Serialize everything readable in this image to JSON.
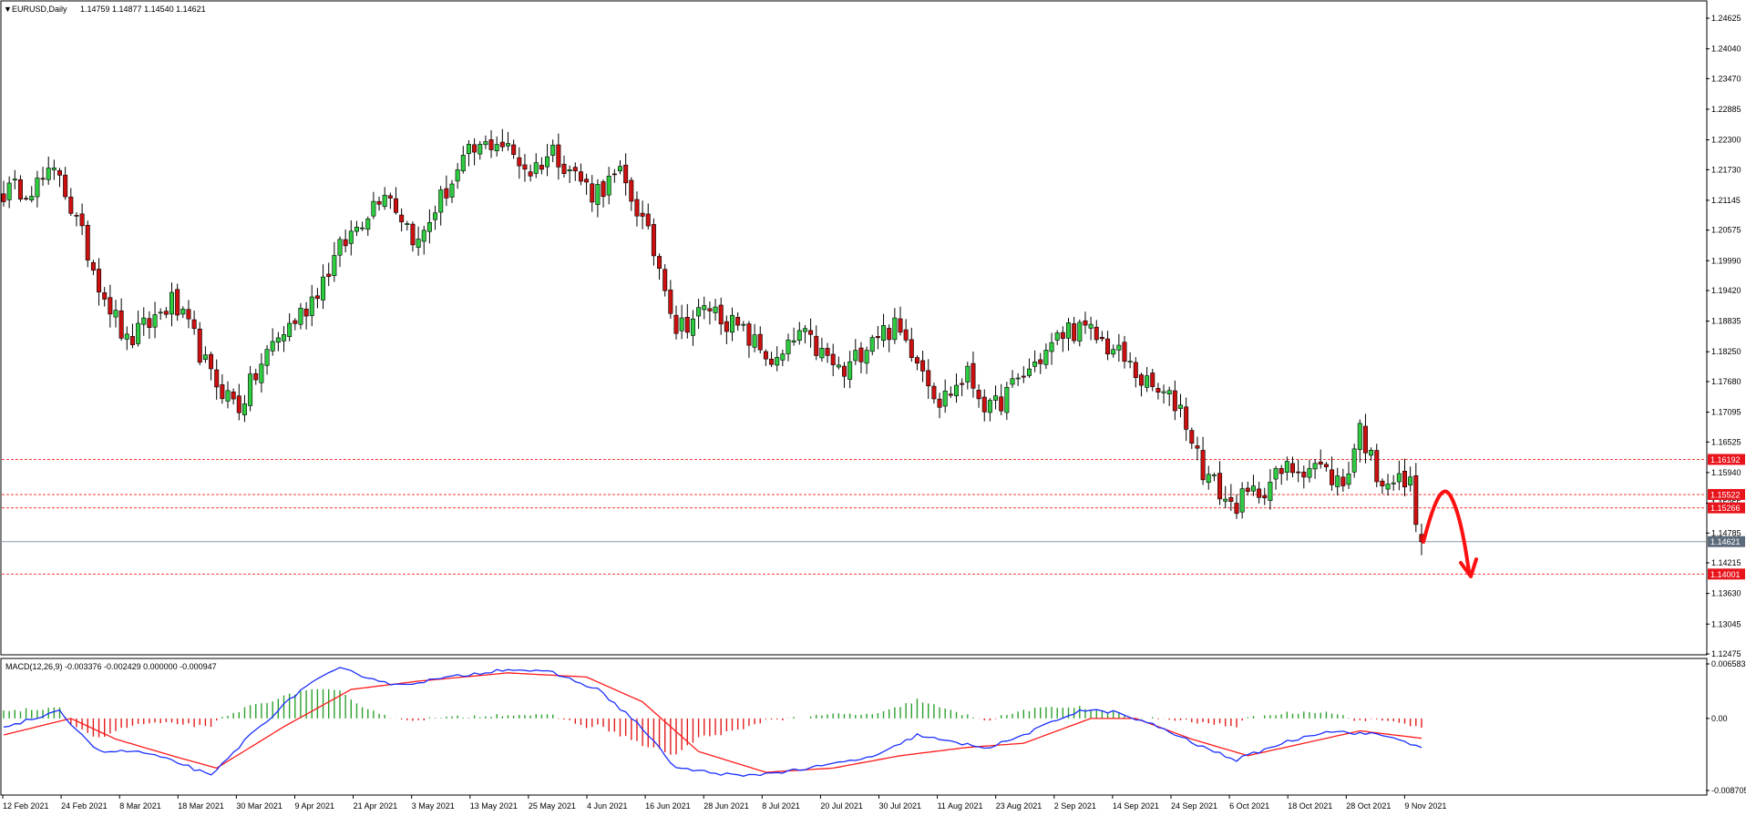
{
  "header": {
    "symbol": "EURUSD,Daily",
    "ohlc": "1.14759 1.14877 1.14540 1.14621"
  },
  "macd_header": "MACD(12,26,9) -0.003376 -0.002429 0.000000 -0.000947",
  "colors": {
    "bull": "#2ecc40",
    "bear": "#cc1010",
    "level_line": "#ff3b3b",
    "price_line": "#8899aa",
    "macd_line": "#1a2eff",
    "signal_line": "#ff1a1a",
    "arrow": "#ff1010"
  },
  "price_axis": {
    "min": 1.12475,
    "max": 1.24625,
    "ticks": [
      "1.24625",
      "1.24040",
      "1.23470",
      "1.22885",
      "1.22300",
      "1.21730",
      "1.21145",
      "1.20575",
      "1.19990",
      "1.19420",
      "1.18835",
      "1.18250",
      "1.17680",
      "1.17095",
      "1.16525",
      "1.15940",
      "1.15355",
      "1.14785",
      "1.14215",
      "1.13630",
      "1.13045",
      "1.12475"
    ]
  },
  "price_labels": [
    {
      "value": 1.16192,
      "text": "1.16192",
      "kind": "level"
    },
    {
      "value": 1.15522,
      "text": "1.15522",
      "kind": "level"
    },
    {
      "value": 1.15266,
      "text": "1.15266",
      "kind": "level"
    },
    {
      "value": 1.14621,
      "text": "1.14621",
      "kind": "current"
    },
    {
      "value": 1.14001,
      "text": "1.14001",
      "kind": "level"
    }
  ],
  "macd_axis": {
    "min": -0.008705,
    "max": 0.006583,
    "ticks": [
      "0.006583",
      "0.00",
      "-0.008705"
    ]
  },
  "date_axis": [
    "12 Feb 2021",
    "24 Feb 2021",
    "8 Mar 2021",
    "18 Mar 2021",
    "30 Mar 2021",
    "9 Apr 2021",
    "21 Apr 2021",
    "3 May 2021",
    "13 May 2021",
    "25 May 2021",
    "4 Jun 2021",
    "16 Jun 2021",
    "28 Jun 2021",
    "8 Jul 2021",
    "20 Jul 2021",
    "30 Jul 2021",
    "11 Aug 2021",
    "23 Aug 2021",
    "2 Sep 2021",
    "14 Sep 2021",
    "24 Sep 2021",
    "6 Oct 2021",
    "18 Oct 2021",
    "28 Oct 2021",
    "9 Nov 2021"
  ],
  "chart_data": {
    "type": "candlestick",
    "title": "EURUSD,Daily",
    "ylim": [
      1.12475,
      1.24625
    ],
    "close_anchors": [
      [
        0,
        1.213
      ],
      [
        6,
        1.2145
      ],
      [
        10,
        1.217
      ],
      [
        12,
        1.21
      ],
      [
        17,
        1.196
      ],
      [
        22,
        1.184
      ],
      [
        30,
        1.192
      ],
      [
        34,
        1.185
      ],
      [
        37,
        1.1775
      ],
      [
        42,
        1.172
      ],
      [
        48,
        1.184
      ],
      [
        54,
        1.191
      ],
      [
        60,
        1.202
      ],
      [
        68,
        1.214
      ],
      [
        74,
        1.203
      ],
      [
        77,
        1.21
      ],
      [
        83,
        1.22
      ],
      [
        88,
        1.223
      ],
      [
        94,
        1.217
      ],
      [
        98,
        1.221
      ],
      [
        105,
        1.213
      ],
      [
        110,
        1.216
      ],
      [
        113,
        1.21
      ],
      [
        118,
        1.196
      ],
      [
        120,
        1.187
      ],
      [
        126,
        1.191
      ],
      [
        132,
        1.186
      ],
      [
        138,
        1.18
      ],
      [
        142,
        1.186
      ],
      [
        150,
        1.178
      ],
      [
        155,
        1.186
      ],
      [
        159,
        1.187
      ],
      [
        163,
        1.182
      ],
      [
        167,
        1.173
      ],
      [
        172,
        1.178
      ],
      [
        176,
        1.171
      ],
      [
        182,
        1.178
      ],
      [
        190,
        1.187
      ],
      [
        194,
        1.186
      ],
      [
        199,
        1.182
      ],
      [
        204,
        1.176
      ],
      [
        210,
        1.172
      ],
      [
        214,
        1.16
      ],
      [
        219,
        1.153
      ],
      [
        224,
        1.156
      ],
      [
        229,
        1.16
      ],
      [
        234,
        1.161
      ],
      [
        239,
        1.157
      ],
      [
        242,
        1.168
      ],
      [
        245,
        1.159
      ],
      [
        251,
        1.157
      ],
      [
        253,
        1.1462
      ]
    ],
    "macd_anchors": [
      [
        0,
        -0.001
      ],
      [
        10,
        0.0008
      ],
      [
        17,
        -0.004
      ],
      [
        24,
        -0.004
      ],
      [
        32,
        -0.0055
      ],
      [
        37,
        -0.007
      ],
      [
        44,
        -0.002
      ],
      [
        54,
        0.004
      ],
      [
        60,
        0.006
      ],
      [
        70,
        0.004
      ],
      [
        90,
        0.006
      ],
      [
        98,
        0.0055
      ],
      [
        106,
        0.0035
      ],
      [
        113,
        -0.0005
      ],
      [
        120,
        -0.006
      ],
      [
        132,
        -0.007
      ],
      [
        144,
        -0.006
      ],
      [
        156,
        -0.0045
      ],
      [
        163,
        -0.002
      ],
      [
        170,
        -0.003
      ],
      [
        176,
        -0.0035
      ],
      [
        182,
        -0.002
      ],
      [
        192,
        0.001
      ],
      [
        198,
        0.0008
      ],
      [
        206,
        -0.001
      ],
      [
        214,
        -0.0035
      ],
      [
        220,
        -0.005
      ],
      [
        228,
        -0.003
      ],
      [
        236,
        -0.0015
      ],
      [
        246,
        -0.002
      ],
      [
        253,
        -0.0034
      ]
    ],
    "signal_anchors": [
      [
        0,
        -0.002
      ],
      [
        12,
        0.0
      ],
      [
        20,
        -0.0025
      ],
      [
        30,
        -0.0045
      ],
      [
        38,
        -0.006
      ],
      [
        50,
        -0.001
      ],
      [
        62,
        0.0035
      ],
      [
        74,
        0.0045
      ],
      [
        90,
        0.0055
      ],
      [
        104,
        0.005
      ],
      [
        114,
        0.002
      ],
      [
        124,
        -0.004
      ],
      [
        136,
        -0.0065
      ],
      [
        148,
        -0.006
      ],
      [
        160,
        -0.0045
      ],
      [
        172,
        -0.0035
      ],
      [
        182,
        -0.003
      ],
      [
        194,
        0.0
      ],
      [
        202,
        0.0
      ],
      [
        212,
        -0.0025
      ],
      [
        222,
        -0.0045
      ],
      [
        232,
        -0.003
      ],
      [
        242,
        -0.0015
      ],
      [
        253,
        -0.0024
      ]
    ]
  }
}
